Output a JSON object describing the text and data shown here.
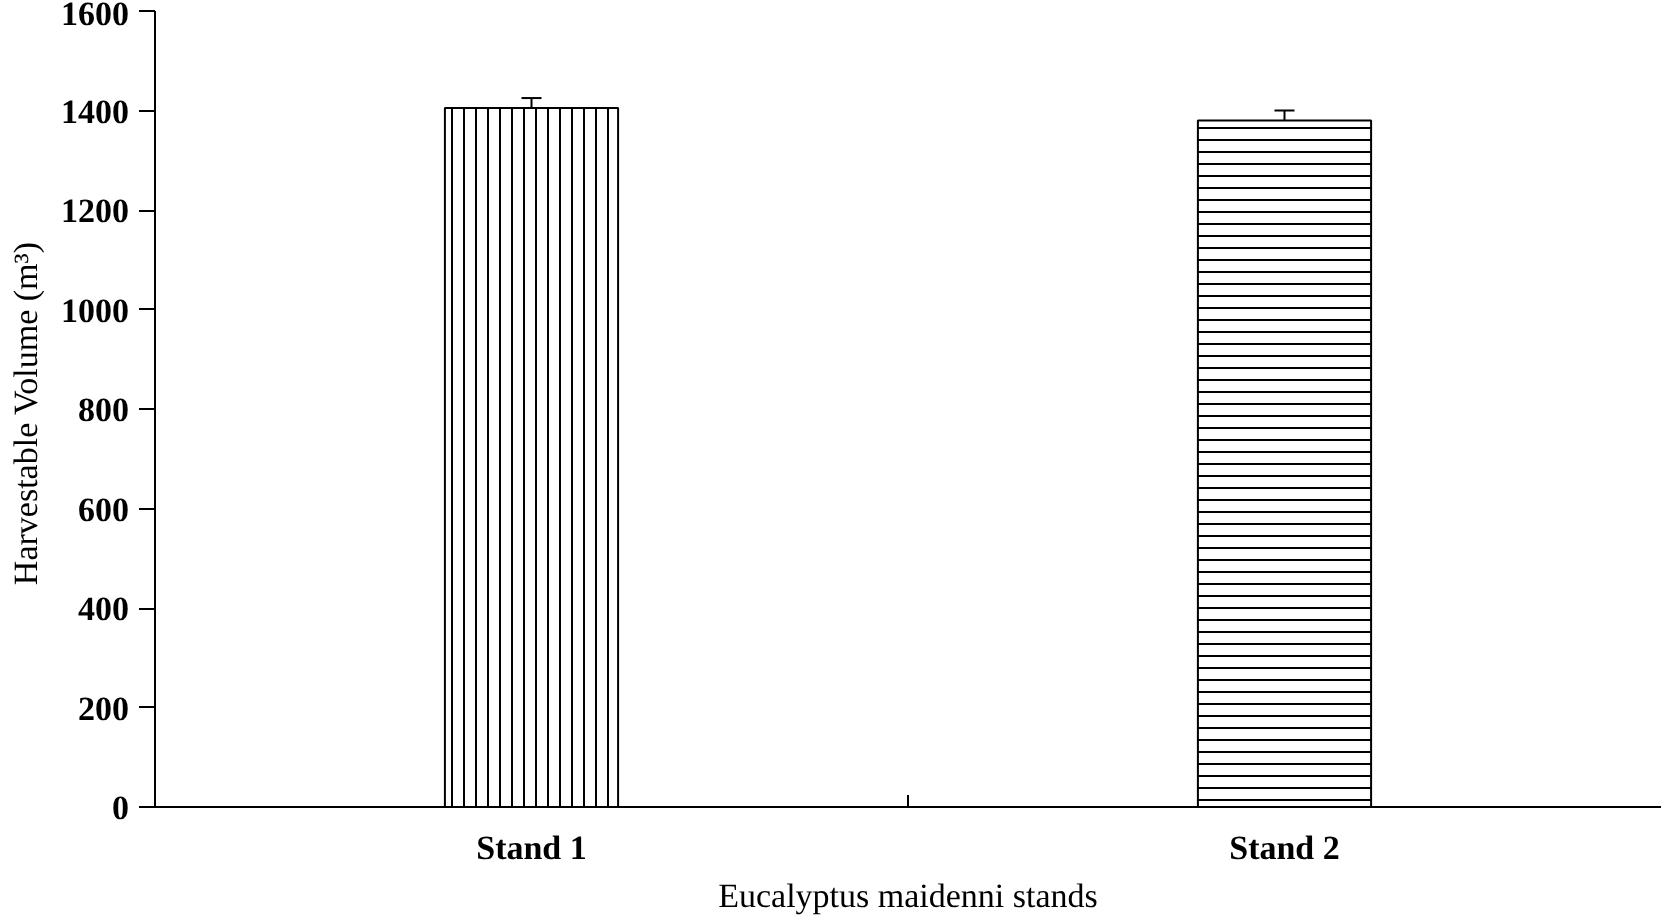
{
  "chart_data": {
    "type": "bar",
    "xlabel": "Eucalyptus maidenni stands",
    "ylabel": "Harvestable Volume  (m³)",
    "categories": [
      "Stand 1",
      "Stand 2"
    ],
    "values": [
      1405,
      1380
    ],
    "errors": [
      20,
      20
    ],
    "colors": [
      "#000000",
      "#000000"
    ],
    "ylim": [
      0,
      1600
    ],
    "yticks": [
      0,
      200,
      400,
      600,
      800,
      1000,
      1200,
      1400,
      1600
    ],
    "grid": false
  }
}
